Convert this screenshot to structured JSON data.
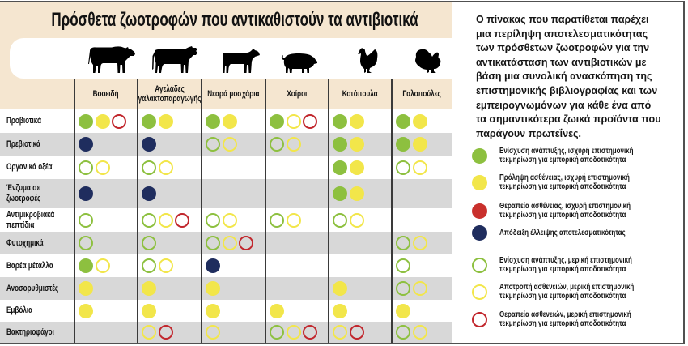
{
  "title": "Πρόσθετα ζωοτροφών που αντικαθιστούν τα αντιβιοτικά",
  "markers": {
    "green-filled": {
      "color": "#8dc03f",
      "style": "filled"
    },
    "yellow-filled": {
      "color": "#f2e64a",
      "style": "filled"
    },
    "red-filled": {
      "color": "#c9302c",
      "style": "filled"
    },
    "navy-filled": {
      "color": "#1f2d5e",
      "style": "filled"
    },
    "green-outline": {
      "color": "#8dc03f",
      "style": "outline"
    },
    "yellow-outline": {
      "color": "#f2e64a",
      "style": "outline"
    },
    "red-outline": {
      "color": "#c1272d",
      "style": "outline"
    }
  },
  "chart_data": {
    "type": "table",
    "title": "Πρόσθετα ζωοτροφών που αντικαθιστούν τα αντιβιοτικά"
  },
  "table": {
    "columns": [
      {
        "key": "cattle",
        "icon": "bull-icon",
        "label": [
          "Βοοειδή"
        ]
      },
      {
        "key": "dairy-cows",
        "icon": "cow-icon",
        "label": [
          "Αγελάδες",
          "γαλακτοπαραγωγής"
        ]
      },
      {
        "key": "calves",
        "icon": "calf-icon",
        "label": [
          "Νεαρά μοσχάρια"
        ]
      },
      {
        "key": "pigs",
        "icon": "pig-icon",
        "label": [
          "Χοίροι"
        ]
      },
      {
        "key": "chickens",
        "icon": "chicken-icon",
        "label": [
          "Κοτόπουλα"
        ]
      },
      {
        "key": "turkeys",
        "icon": "turkey-icon",
        "label": [
          "Γαλοπούλες"
        ]
      }
    ],
    "rows": [
      {
        "label": [
          "Προβιοτικά"
        ],
        "cells": [
          [
            "green-filled",
            "yellow-filled",
            "red-outline"
          ],
          [
            "green-filled",
            "yellow-filled"
          ],
          [
            "green-filled",
            "yellow-filled"
          ],
          [
            "green-filled",
            "yellow-outline",
            "red-outline"
          ],
          [
            "green-filled",
            "yellow-filled"
          ],
          [
            "green-filled",
            "yellow-filled"
          ]
        ]
      },
      {
        "label": [
          "Πρεβιοτικά"
        ],
        "cells": [
          [
            "navy-filled"
          ],
          [
            "navy-filled"
          ],
          [
            "green-outline",
            "yellow-outline"
          ],
          [
            "green-outline",
            "yellow-outline"
          ],
          [
            "green-filled",
            "yellow-filled"
          ],
          [
            "green-filled",
            "yellow-filled"
          ]
        ]
      },
      {
        "label": [
          "Οργανικά οξέα"
        ],
        "cells": [
          [
            "green-outline",
            "yellow-outline"
          ],
          [
            "green-outline",
            "yellow-outline"
          ],
          [],
          [],
          [
            "green-filled",
            "yellow-filled"
          ],
          [
            "green-outline",
            "yellow-outline"
          ]
        ]
      },
      {
        "label": [
          "Ένζυμα σε",
          "ζωοτροφές"
        ],
        "cells": [
          [
            "navy-filled"
          ],
          [
            "navy-filled"
          ],
          [],
          [],
          [
            "green-filled",
            "yellow-filled"
          ],
          []
        ]
      },
      {
        "label": [
          "Αντιμικροβιακά",
          "πεπτίδια"
        ],
        "cells": [
          [
            "green-outline"
          ],
          [
            "green-outline",
            "yellow-outline",
            "red-outline"
          ],
          [
            "green-outline",
            "yellow-outline"
          ],
          [
            "green-outline",
            "yellow-outline"
          ],
          [
            "green-outline",
            "yellow-outline"
          ],
          []
        ]
      },
      {
        "label": [
          "Φυτοχημικά"
        ],
        "cells": [
          [
            "green-outline"
          ],
          [
            "green-outline"
          ],
          [
            "green-outline",
            "yellow-outline",
            "red-outline"
          ],
          [],
          [],
          [
            "green-outline",
            "yellow-outline"
          ]
        ]
      },
      {
        "label": [
          "Βαρέα μέταλλα"
        ],
        "cells": [
          [
            "green-filled",
            "yellow-outline"
          ],
          [
            "green-outline",
            "yellow-outline"
          ],
          [
            "navy-filled"
          ],
          [],
          [],
          [
            "green-outline"
          ]
        ]
      },
      {
        "label": [
          "Ανοσορυθμιστές"
        ],
        "cells": [
          [
            "yellow-filled"
          ],
          [
            "yellow-filled"
          ],
          [
            "yellow-filled"
          ],
          [],
          [
            "yellow-filled"
          ],
          [
            "green-outline",
            "yellow-outline"
          ]
        ]
      },
      {
        "label": [
          "Εμβόλια"
        ],
        "cells": [
          [
            "yellow-filled"
          ],
          [
            "yellow-filled"
          ],
          [
            "yellow-filled"
          ],
          [
            "yellow-filled"
          ],
          [
            "yellow-filled"
          ],
          [
            "yellow-filled"
          ]
        ]
      },
      {
        "label": [
          "Βακτηριοφάγοι"
        ],
        "cells": [
          [],
          [
            "yellow-outline",
            "red-outline"
          ],
          [
            "yellow-outline"
          ],
          [
            "green-outline",
            "yellow-outline",
            "red-outline"
          ],
          [
            "yellow-outline",
            "red-outline"
          ],
          [
            "green-outline",
            "yellow-outline"
          ]
        ]
      }
    ]
  },
  "description_lines": [
    "Ο πίνακας που παρατίθεται παρέχει",
    "μια περίληψη αποτελεσματικότητας",
    "των πρόσθετων ζωοτροφών για την",
    "αντικατάσταση των αντιβιοτικών με",
    "βάση μια συνολική ανασκόπηση της",
    "επιστημονικής βιβλιογραφίας και των",
    "εμπειρογνωμόνων για κάθε ένα από",
    "τα σημαντικότερα ζωικά προϊόντα που",
    "παράγουν πρωτεΐνες."
  ],
  "legend": [
    {
      "marker": "green-filled",
      "lines": [
        "Ενίσχυση ανάπτυξης, ισχυρή επιστημονική",
        "τεκμηρίωση για εμπορική αποδοτικότητα"
      ]
    },
    {
      "marker": "yellow-filled",
      "lines": [
        "Πρόληψη ασθένειας, ισχυρή επιστημονική",
        "τεκμηρίωση για εμπορική αποδοτικότητα"
      ]
    },
    {
      "marker": "red-filled",
      "lines": [
        "Θεραπεία ασθένειας, ισχυρή επιστημονική",
        "τεκμηρίωση για εμπορική αποδοτικότητα"
      ]
    },
    {
      "marker": "navy-filled",
      "lines": [
        "Απόδειξη έλλειψης αποτελεσματικότητας"
      ]
    },
    {
      "marker": "green-outline",
      "lines": [
        "Ενίσχυση ανάπτυξης, μερική επιστημονική",
        "τεκμηρίωση για εμπορική αποδοτικότητα"
      ]
    },
    {
      "marker": "yellow-outline",
      "lines": [
        "Αποτροπή ασθενειών, μερική επιστημονική",
        "τεκμηρίωση για εμπορική αποδοτικότητα"
      ]
    },
    {
      "marker": "red-outline",
      "lines": [
        "Θεραπεία ασθενειών, μερική επιστημονική",
        "τεκμηρίωση για εμπορική αποδοτικότητα"
      ]
    }
  ]
}
